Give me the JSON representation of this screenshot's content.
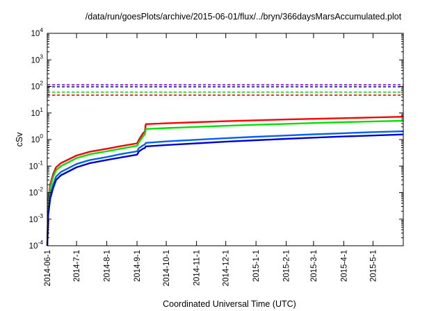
{
  "chart_data": {
    "type": "line",
    "title": "/data/run/goesPlots/archive/2015-06-01/flux/../bryn/366daysMarsAccumulated.plot",
    "xlabel": "Coordinated Universal Time (UTC)",
    "ylabel": "cSv",
    "yscale": "log",
    "ylim": [
      0.0001,
      10000
    ],
    "xlim": [
      "2014-06-01",
      "2015-06-01"
    ],
    "grid": false,
    "legend": "none",
    "x_ticks": [
      "2014-06-1",
      "2014-7-1",
      "2014-8-1",
      "2014-9-1",
      "2014-10-1",
      "2014-11-1",
      "2014-12-1",
      "2015-1-1",
      "2015-2-1",
      "2015-3-1",
      "2015-4-1",
      "2015-5-1"
    ],
    "y_ticks": [
      {
        "base": "10",
        "exp": "-4",
        "value": 0.0001
      },
      {
        "base": "10",
        "exp": "-3",
        "value": 0.001
      },
      {
        "base": "10",
        "exp": "-2",
        "value": 0.01
      },
      {
        "base": "10",
        "exp": "-1",
        "value": 0.1
      },
      {
        "base": "10",
        "exp": "0",
        "value": 1
      },
      {
        "base": "10",
        "exp": "1",
        "value": 10
      },
      {
        "base": "10",
        "exp": "2",
        "value": 100
      },
      {
        "base": "10",
        "exp": "3",
        "value": 1000
      },
      {
        "base": "10",
        "exp": "4",
        "value": 10000
      }
    ],
    "series": [
      {
        "color": "#ff0000",
        "x": [
          "2014-06-01",
          "2014-06-02",
          "2014-06-04",
          "2014-06-07",
          "2014-06-10",
          "2014-06-15",
          "2014-07-01",
          "2014-07-15",
          "2014-08-01",
          "2014-08-15",
          "2014-09-01",
          "2014-09-03",
          "2014-09-07",
          "2014-09-09",
          "2014-09-10",
          "2014-10-01",
          "2014-11-01",
          "2014-12-01",
          "2015-01-01",
          "2015-02-01",
          "2015-03-01",
          "2015-04-01",
          "2015-05-01",
          "2015-06-01"
        ],
        "y": [
          0.0001,
          0.005,
          0.02,
          0.05,
          0.09,
          0.13,
          0.25,
          0.35,
          0.45,
          0.56,
          0.72,
          1.0,
          1.7,
          2.0,
          3.8,
          4.1,
          4.5,
          4.9,
          5.3,
          5.7,
          6.0,
          6.4,
          6.8,
          7.2
        ]
      },
      {
        "color": "#00e000",
        "x": [
          "2014-06-01",
          "2014-06-02",
          "2014-06-04",
          "2014-06-07",
          "2014-06-10",
          "2014-06-15",
          "2014-07-01",
          "2014-07-15",
          "2014-08-01",
          "2014-08-15",
          "2014-09-01",
          "2014-09-03",
          "2014-09-07",
          "2014-09-09",
          "2014-09-10",
          "2014-10-01",
          "2014-11-01",
          "2014-12-01",
          "2015-01-01",
          "2015-02-01",
          "2015-03-01",
          "2015-04-01",
          "2015-05-01",
          "2015-06-01"
        ],
        "y": [
          0.0001,
          0.004,
          0.015,
          0.04,
          0.07,
          0.1,
          0.2,
          0.28,
          0.36,
          0.45,
          0.58,
          0.8,
          1.3,
          1.6,
          2.5,
          2.7,
          3.0,
          3.3,
          3.6,
          3.9,
          4.2,
          4.5,
          4.8,
          5.1
        ]
      },
      {
        "color": "#0060ff",
        "x": [
          "2014-06-01",
          "2014-06-02",
          "2014-06-04",
          "2014-06-07",
          "2014-06-10",
          "2014-06-15",
          "2014-07-01",
          "2014-07-15",
          "2014-08-01",
          "2014-08-15",
          "2014-09-01",
          "2014-09-03",
          "2014-09-07",
          "2014-09-09",
          "2014-09-10",
          "2014-10-01",
          "2014-11-01",
          "2014-12-01",
          "2015-01-01",
          "2015-02-01",
          "2015-03-01",
          "2015-04-01",
          "2015-05-01",
          "2015-06-01"
        ],
        "y": [
          0.0001,
          0.002,
          0.008,
          0.02,
          0.04,
          0.06,
          0.12,
          0.17,
          0.22,
          0.28,
          0.36,
          0.48,
          0.6,
          0.65,
          0.75,
          0.85,
          0.98,
          1.12,
          1.27,
          1.42,
          1.57,
          1.73,
          1.9,
          2.05
        ]
      },
      {
        "color": "#0000cc",
        "x": [
          "2014-06-01",
          "2014-06-02",
          "2014-06-04",
          "2014-06-07",
          "2014-06-10",
          "2014-06-15",
          "2014-07-01",
          "2014-07-15",
          "2014-08-01",
          "2014-08-15",
          "2014-09-01",
          "2014-09-03",
          "2014-09-07",
          "2014-09-09",
          "2014-09-10",
          "2014-10-01",
          "2014-11-01",
          "2014-12-01",
          "2015-01-01",
          "2015-02-01",
          "2015-03-01",
          "2015-04-01",
          "2015-05-01",
          "2015-06-01"
        ],
        "y": [
          0.0001,
          0.0015,
          0.006,
          0.015,
          0.03,
          0.045,
          0.09,
          0.13,
          0.17,
          0.21,
          0.27,
          0.36,
          0.45,
          0.48,
          0.55,
          0.62,
          0.72,
          0.83,
          0.94,
          1.06,
          1.18,
          1.3,
          1.42,
          1.55
        ]
      }
    ],
    "reference_lines": [
      {
        "color": "#9400d3",
        "y": 115
      },
      {
        "color": "#0000cc",
        "y": 97
      },
      {
        "color": "#00e000",
        "y": 61
      },
      {
        "color": "#ff0000",
        "y": 47
      }
    ]
  }
}
